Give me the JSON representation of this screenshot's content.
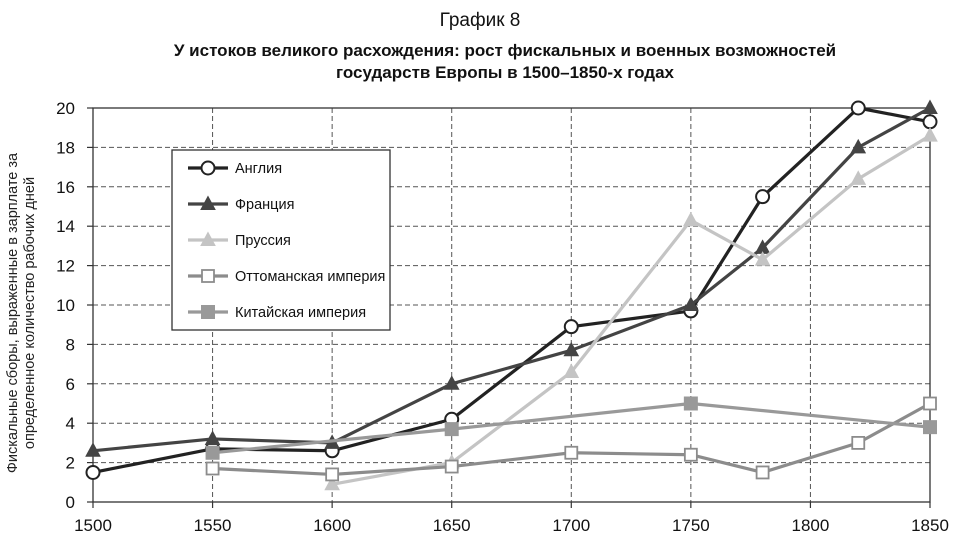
{
  "chart_data": {
    "type": "line",
    "label": "График 8",
    "title_line1": "У истоков великого расхождения: рост фискальных и военных возможностей",
    "title_line2": "государств Европы в 1500–1850-х годах",
    "ylabel_line1": "Фискальные сборы, выраженные в зарплате за",
    "ylabel_line2": "определенное количество рабочих дней",
    "xlabel": "",
    "xlim": [
      1500,
      1850
    ],
    "ylim": [
      0,
      20
    ],
    "x_ticks": [
      1500,
      1550,
      1600,
      1650,
      1700,
      1750,
      1800,
      1850
    ],
    "y_ticks": [
      0,
      2,
      4,
      6,
      8,
      10,
      12,
      14,
      16,
      18,
      20
    ],
    "grid": true,
    "legend_position": "top-left",
    "series": [
      {
        "name": "Англия",
        "color": "#222222",
        "marker": "circle-open",
        "points": [
          [
            1500,
            1.5
          ],
          [
            1550,
            2.7
          ],
          [
            1600,
            2.6
          ],
          [
            1650,
            4.2
          ],
          [
            1700,
            8.9
          ],
          [
            1750,
            9.7
          ],
          [
            1780,
            15.5
          ],
          [
            1820,
            20.0
          ],
          [
            1850,
            19.3
          ]
        ]
      },
      {
        "name": "Франция",
        "color": "#444444",
        "marker": "triangle-filled",
        "points": [
          [
            1500,
            2.6
          ],
          [
            1550,
            3.2
          ],
          [
            1600,
            3.0
          ],
          [
            1650,
            6.0
          ],
          [
            1700,
            7.7
          ],
          [
            1750,
            10.0
          ],
          [
            1780,
            12.9
          ],
          [
            1820,
            18.0
          ],
          [
            1850,
            20.0
          ]
        ]
      },
      {
        "name": "Пруссия",
        "color": "#c4c4c4",
        "marker": "triangle-filled",
        "points": [
          [
            1600,
            0.9
          ],
          [
            1650,
            2.0
          ],
          [
            1700,
            6.6
          ],
          [
            1750,
            14.3
          ],
          [
            1780,
            12.3
          ],
          [
            1820,
            16.4
          ],
          [
            1850,
            18.6
          ]
        ]
      },
      {
        "name": "Оттоманская империя",
        "color": "#8c8c8c",
        "marker": "square-open",
        "points": [
          [
            1550,
            1.7
          ],
          [
            1600,
            1.4
          ],
          [
            1650,
            1.8
          ],
          [
            1700,
            2.5
          ],
          [
            1750,
            2.4
          ],
          [
            1780,
            1.5
          ],
          [
            1820,
            3.0
          ],
          [
            1850,
            5.0
          ]
        ]
      },
      {
        "name": "Китайская империя",
        "color": "#999999",
        "marker": "square-filled",
        "points": [
          [
            1550,
            2.5
          ],
          [
            1650,
            3.7
          ],
          [
            1750,
            5.0
          ],
          [
            1850,
            3.8
          ]
        ]
      }
    ]
  }
}
